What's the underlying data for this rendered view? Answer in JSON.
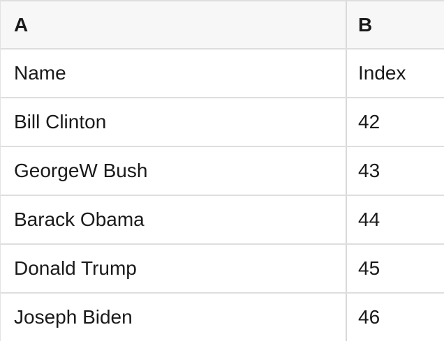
{
  "table": {
    "column_headers": [
      "A",
      "B"
    ],
    "rows": [
      [
        "Name",
        "Index"
      ],
      [
        "Bill Clinton",
        "42"
      ],
      [
        "GeorgeW Bush",
        "43"
      ],
      [
        "Barack Obama",
        "44"
      ],
      [
        "Donald Trump",
        "45"
      ],
      [
        "Joseph Biden",
        "46"
      ]
    ]
  },
  "colors": {
    "header_bg": "#f7f7f7",
    "body_bg": "#ffffff",
    "row_border": "#dedede",
    "column_border": "#d9d9d9",
    "outer_border": "#e2e2e2",
    "text": "#1a1a1a"
  }
}
